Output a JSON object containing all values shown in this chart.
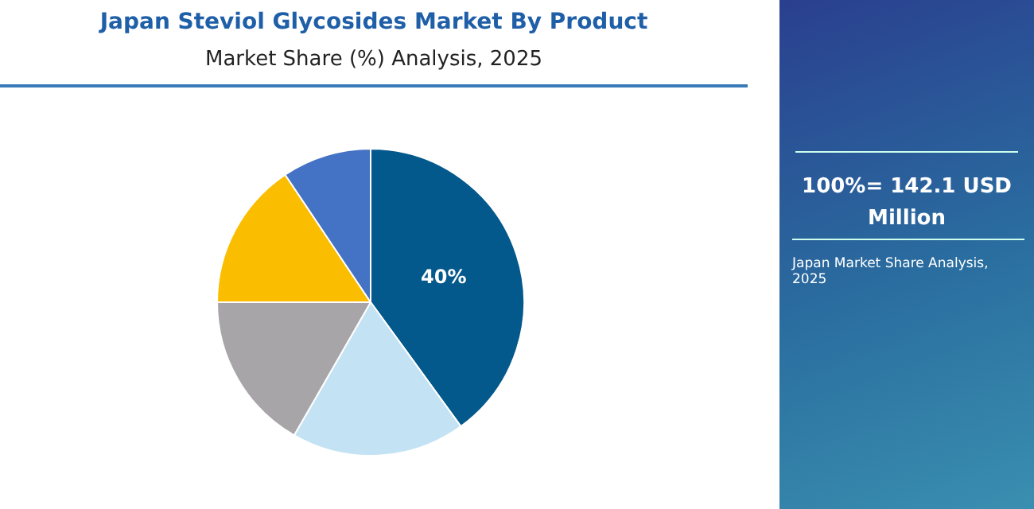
{
  "chart_data": {
    "type": "pie",
    "title": "Japan Steviol Glycosides Market By Product",
    "subtitle": "Market Share (%) Analysis, 2025",
    "categories": [
      null,
      null,
      null,
      null,
      null
    ],
    "values": [
      40,
      18.3,
      16.7,
      15.6,
      9.4
    ],
    "colors": [
      "#03588c",
      "#c3e2f3",
      "#a7a5a8",
      "#fbbd00",
      "#4472c4"
    ],
    "value_labels": [
      "40%",
      null,
      null,
      null,
      null
    ],
    "legend": false,
    "annotations": [
      "100%= 142.1 USD Million",
      "Japan Market Share Analysis, 2025"
    ]
  }
}
